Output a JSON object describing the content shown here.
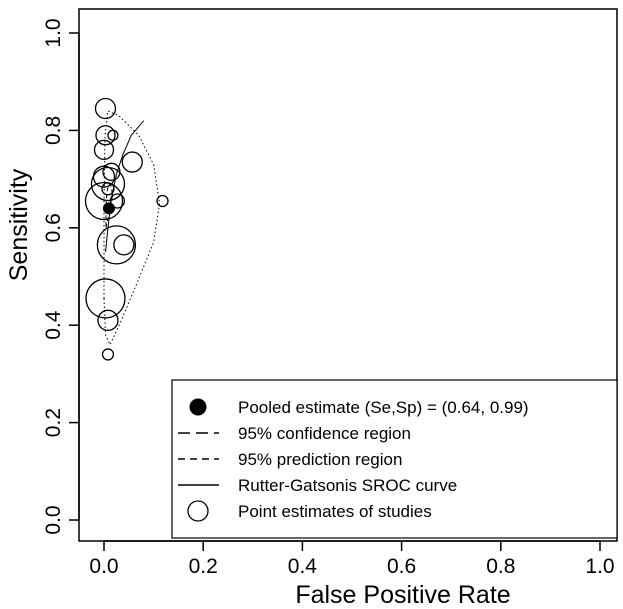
{
  "chart_data": {
    "type": "scatter",
    "xlabel": "False Positive Rate",
    "ylabel": "Sensitivity",
    "xlim": [
      0,
      1
    ],
    "ylim": [
      0,
      1
    ],
    "xticks": [
      "0.0",
      "0.2",
      "0.4",
      "0.6",
      "0.8",
      "1.0"
    ],
    "yticks": [
      "0.0",
      "0.2",
      "0.4",
      "0.6",
      "0.8",
      "1.0"
    ],
    "grid": false,
    "legend_position": "bottom-right",
    "legend": [
      {
        "symbol": "filled-circle",
        "label": "Pooled estimate (Se,Sp) = (0.64, 0.99)"
      },
      {
        "symbol": "long-dash",
        "label": "95% confidence region"
      },
      {
        "symbol": "short-dash",
        "label": "95% prediction region"
      },
      {
        "symbol": "solid-line",
        "label": "Rutter-Gatsonis SROC curve"
      },
      {
        "symbol": "open-circle",
        "label": "Point estimates of studies"
      }
    ],
    "pooled_estimate": {
      "fpr": 0.01,
      "sensitivity": 0.64
    },
    "studies": [
      {
        "fpr": 0.003,
        "sensitivity": 0.845,
        "weight": 1.0
      },
      {
        "fpr": 0.003,
        "sensitivity": 0.79,
        "weight": 0.95
      },
      {
        "fpr": 0.018,
        "sensitivity": 0.79,
        "weight": 0.5
      },
      {
        "fpr": 0.0,
        "sensitivity": 0.76,
        "weight": 0.95
      },
      {
        "fpr": 0.057,
        "sensitivity": 0.735,
        "weight": 1.0
      },
      {
        "fpr": 0.015,
        "sensitivity": 0.715,
        "weight": 0.85
      },
      {
        "fpr": 0.0,
        "sensitivity": 0.705,
        "weight": 1.05
      },
      {
        "fpr": 0.008,
        "sensitivity": 0.69,
        "weight": 1.65
      },
      {
        "fpr": 0.008,
        "sensitivity": 0.68,
        "weight": 0.6
      },
      {
        "fpr": 0.027,
        "sensitivity": 0.655,
        "weight": 0.7
      },
      {
        "fpr": 0.118,
        "sensitivity": 0.655,
        "weight": 0.55
      },
      {
        "fpr": 0.0,
        "sensitivity": 0.655,
        "weight": 1.85
      },
      {
        "fpr": 0.025,
        "sensitivity": 0.565,
        "weight": 1.9
      },
      {
        "fpr": 0.04,
        "sensitivity": 0.565,
        "weight": 1.0
      },
      {
        "fpr": 0.003,
        "sensitivity": 0.455,
        "weight": 1.95
      },
      {
        "fpr": 0.008,
        "sensitivity": 0.41,
        "weight": 1.0
      },
      {
        "fpr": 0.008,
        "sensitivity": 0.34,
        "weight": 0.55
      }
    ],
    "sroc_curve": [
      {
        "fpr": 0.003,
        "sensitivity": 0.55
      },
      {
        "fpr": 0.008,
        "sensitivity": 0.6
      },
      {
        "fpr": 0.015,
        "sensitivity": 0.66
      },
      {
        "fpr": 0.025,
        "sensitivity": 0.71
      },
      {
        "fpr": 0.038,
        "sensitivity": 0.75
      },
      {
        "fpr": 0.055,
        "sensitivity": 0.79
      },
      {
        "fpr": 0.08,
        "sensitivity": 0.82
      }
    ],
    "confidence_region": [
      {
        "fpr": 0.004,
        "sensitivity": 0.6
      },
      {
        "fpr": 0.007,
        "sensitivity": 0.615
      },
      {
        "fpr": 0.013,
        "sensitivity": 0.64
      },
      {
        "fpr": 0.017,
        "sensitivity": 0.665
      },
      {
        "fpr": 0.015,
        "sensitivity": 0.685
      },
      {
        "fpr": 0.01,
        "sensitivity": 0.69
      },
      {
        "fpr": 0.006,
        "sensitivity": 0.675
      },
      {
        "fpr": 0.004,
        "sensitivity": 0.645
      },
      {
        "fpr": 0.004,
        "sensitivity": 0.6
      }
    ],
    "prediction_region": [
      {
        "fpr": 0.0,
        "sensitivity": 0.455
      },
      {
        "fpr": 0.0,
        "sensitivity": 0.65
      },
      {
        "fpr": 0.002,
        "sensitivity": 0.79
      },
      {
        "fpr": 0.008,
        "sensitivity": 0.84
      },
      {
        "fpr": 0.03,
        "sensitivity": 0.83
      },
      {
        "fpr": 0.07,
        "sensitivity": 0.79
      },
      {
        "fpr": 0.1,
        "sensitivity": 0.73
      },
      {
        "fpr": 0.112,
        "sensitivity": 0.65
      },
      {
        "fpr": 0.1,
        "sensitivity": 0.57
      },
      {
        "fpr": 0.068,
        "sensitivity": 0.49
      },
      {
        "fpr": 0.035,
        "sensitivity": 0.41
      },
      {
        "fpr": 0.012,
        "sensitivity": 0.36
      },
      {
        "fpr": 0.003,
        "sensitivity": 0.38
      },
      {
        "fpr": 0.0,
        "sensitivity": 0.455
      }
    ]
  }
}
